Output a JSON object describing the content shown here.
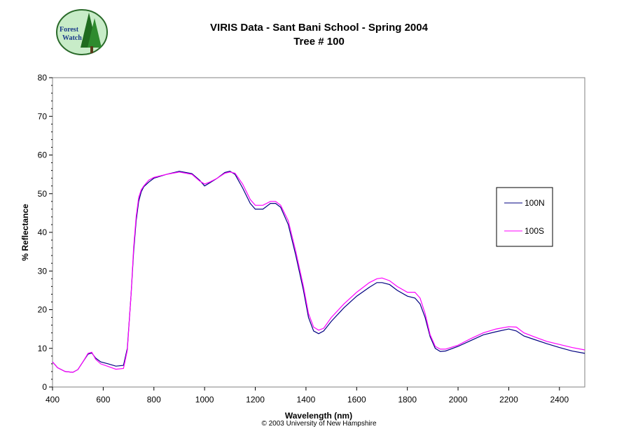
{
  "header": {
    "logo_text": "Forest Watch",
    "logo_icon": "forest-watch-logo",
    "title_line1": "VIRIS Data - Sant Bani School - Spring 2004",
    "title_line2": "Tree # 100"
  },
  "footer": {
    "copyright": "© 2003 University of New Hampshire"
  },
  "colors": {
    "series_100N": "#000080",
    "series_100S": "#ff00ff",
    "plot_border": "#808080"
  },
  "chart_data": {
    "type": "line",
    "xlabel": "Wavelength (nm)",
    "ylabel": "% Reflectance",
    "xlim": [
      400,
      2500
    ],
    "ylim": [
      0,
      80
    ],
    "xticks": [
      400,
      600,
      800,
      1000,
      1200,
      1400,
      1600,
      1800,
      2000,
      2200,
      2400
    ],
    "yticks": [
      0,
      10,
      20,
      30,
      40,
      50,
      60,
      70,
      80
    ],
    "grid": false,
    "legend_position": "right",
    "series": [
      {
        "name": "100N",
        "x": [
          400,
          420,
          450,
          480,
          500,
          520,
          540,
          555,
          570,
          590,
          620,
          650,
          680,
          695,
          710,
          720,
          730,
          740,
          750,
          760,
          780,
          800,
          850,
          900,
          950,
          980,
          1000,
          1020,
          1050,
          1080,
          1100,
          1120,
          1150,
          1180,
          1200,
          1230,
          1260,
          1280,
          1300,
          1330,
          1360,
          1390,
          1410,
          1430,
          1450,
          1470,
          1500,
          1550,
          1600,
          1650,
          1680,
          1700,
          1730,
          1760,
          1800,
          1830,
          1850,
          1870,
          1890,
          1910,
          1930,
          1950,
          2000,
          2050,
          2100,
          2150,
          2200,
          2230,
          2260,
          2300,
          2350,
          2400,
          2450,
          2500
        ],
        "y": [
          6.5,
          5.0,
          4.0,
          3.8,
          4.5,
          6.5,
          8.5,
          8.8,
          7.5,
          6.5,
          6.0,
          5.4,
          5.6,
          10.0,
          24.0,
          35.0,
          43.0,
          48.0,
          50.5,
          51.8,
          53.0,
          54.0,
          55.0,
          55.8,
          55.2,
          53.5,
          52.0,
          52.8,
          54.0,
          55.5,
          55.8,
          55.0,
          51.5,
          47.5,
          46.0,
          46.0,
          47.5,
          47.5,
          46.5,
          42.0,
          34.0,
          25.0,
          18.0,
          14.5,
          13.8,
          14.5,
          17.0,
          20.5,
          23.5,
          25.8,
          27.0,
          27.0,
          26.5,
          25.0,
          23.5,
          23.0,
          21.5,
          18.0,
          13.0,
          10.0,
          9.2,
          9.3,
          10.5,
          12.0,
          13.5,
          14.3,
          15.0,
          14.5,
          13.2,
          12.3,
          11.2,
          10.2,
          9.3,
          8.7
        ]
      },
      {
        "name": "100S",
        "x": [
          400,
          420,
          450,
          480,
          500,
          520,
          540,
          555,
          570,
          590,
          620,
          650,
          680,
          695,
          710,
          720,
          730,
          740,
          750,
          760,
          780,
          800,
          850,
          900,
          950,
          980,
          1000,
          1020,
          1050,
          1080,
          1100,
          1120,
          1150,
          1180,
          1200,
          1230,
          1260,
          1280,
          1300,
          1330,
          1360,
          1390,
          1410,
          1430,
          1450,
          1470,
          1500,
          1550,
          1600,
          1650,
          1680,
          1700,
          1730,
          1760,
          1800,
          1830,
          1850,
          1870,
          1890,
          1910,
          1930,
          1950,
          2000,
          2050,
          2100,
          2150,
          2200,
          2230,
          2260,
          2300,
          2350,
          2400,
          2450,
          2500
        ],
        "y": [
          6.5,
          5.0,
          4.0,
          3.8,
          4.5,
          6.5,
          8.7,
          9.0,
          7.2,
          6.0,
          5.3,
          4.6,
          4.8,
          9.5,
          24.0,
          36.0,
          44.0,
          49.0,
          51.0,
          52.0,
          53.5,
          54.2,
          55.0,
          55.6,
          55.0,
          53.3,
          52.5,
          53.0,
          54.0,
          55.3,
          55.6,
          55.3,
          52.5,
          48.5,
          47.0,
          47.0,
          48.0,
          48.0,
          47.0,
          43.0,
          35.0,
          26.0,
          19.0,
          15.5,
          14.7,
          15.2,
          18.0,
          21.5,
          24.5,
          27.0,
          28.0,
          28.2,
          27.5,
          26.0,
          24.5,
          24.5,
          23.0,
          19.0,
          13.5,
          10.5,
          9.8,
          9.8,
          10.8,
          12.5,
          14.0,
          15.0,
          15.6,
          15.5,
          14.0,
          13.0,
          11.8,
          11.0,
          10.2,
          9.6
        ]
      }
    ]
  }
}
